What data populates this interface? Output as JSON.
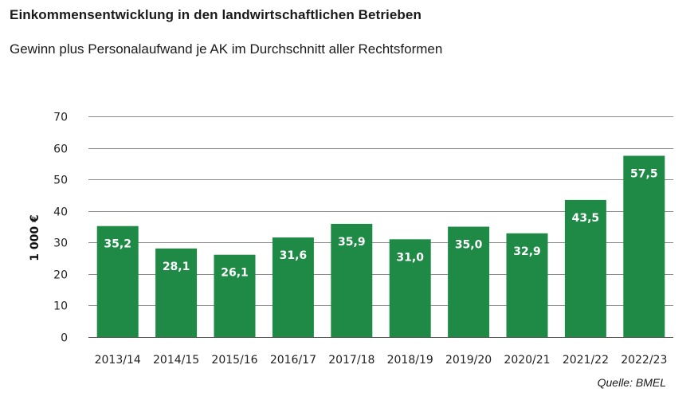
{
  "chart_data": {
    "type": "bar",
    "title": "Einkommensentwicklung in den landwirtschaftlichen Betrieben",
    "subtitle": "Gewinn plus Personalaufwand je AK im Durchschnitt aller Rechtsformen",
    "xlabel": "",
    "ylabel": "1 000 €",
    "ylim": [
      0,
      70
    ],
    "yticks": [
      0,
      10,
      20,
      30,
      40,
      50,
      60,
      70
    ],
    "grid": true,
    "categories": [
      "2013/14",
      "2014/15",
      "2015/16",
      "2016/17",
      "2017/18",
      "2018/19",
      "2019/20",
      "2020/21",
      "2021/22",
      "2022/23"
    ],
    "values": [
      35.2,
      28.1,
      26.1,
      31.6,
      35.9,
      31.0,
      35.0,
      32.9,
      43.5,
      57.5
    ],
    "data_labels": [
      "35,2",
      "28,1",
      "26,1",
      "31,6",
      "35,9",
      "31,0",
      "35,0",
      "32,9",
      "43,5",
      "57,5"
    ],
    "bar_color": "#1e8a45",
    "source": "Quelle: BMEL"
  }
}
